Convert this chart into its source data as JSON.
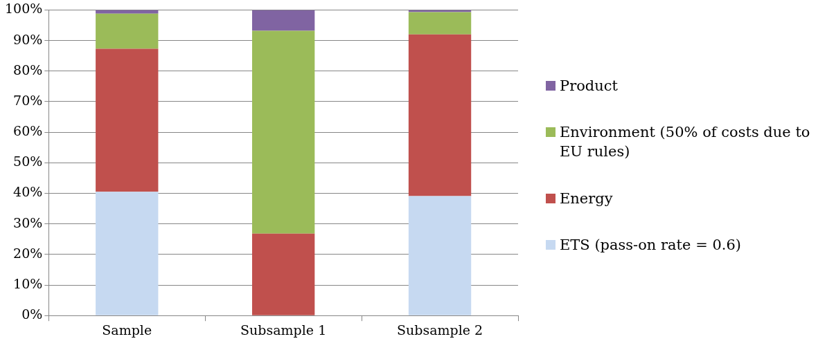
{
  "chart_data": {
    "type": "bar",
    "stacked": true,
    "categories": [
      "Sample",
      "Subsample 1",
      "Subsample 2"
    ],
    "series": [
      {
        "name": "ETS (pass-on rate = 0.6)",
        "color": "#c6d9f1",
        "values": [
          40.5,
          0,
          39.1
        ]
      },
      {
        "name": "Energy",
        "color": "#c0504d",
        "values": [
          46.8,
          26.8,
          52.9
        ]
      },
      {
        "name": "Environment (50% of costs due to EU rules)",
        "color": "#9bbb59",
        "values": [
          11.5,
          66.4,
          7.3
        ]
      },
      {
        "name": "Product",
        "color": "#8064a2",
        "values": [
          1.2,
          6.8,
          0.7
        ]
      }
    ],
    "ylim": [
      0,
      100
    ],
    "yticks": [
      {
        "value": 0,
        "label": "0%"
      },
      {
        "value": 10,
        "label": "10%"
      },
      {
        "value": 20,
        "label": "20%"
      },
      {
        "value": 30,
        "label": "30%"
      },
      {
        "value": 40,
        "label": "40%"
      },
      {
        "value": 50,
        "label": "50%"
      },
      {
        "value": 60,
        "label": "60%"
      },
      {
        "value": 70,
        "label": "70%"
      },
      {
        "value": 80,
        "label": "80%"
      },
      {
        "value": 90,
        "label": "90%"
      },
      {
        "value": 100,
        "label": "100%"
      }
    ],
    "grid": "y",
    "legend": "right"
  }
}
